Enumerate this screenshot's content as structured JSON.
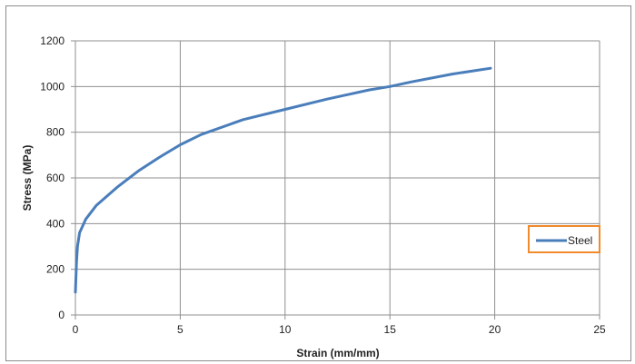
{
  "chart_data": {
    "type": "line",
    "xlabel": "Strain (mm/mm)",
    "ylabel": "Stress (MPa)",
    "xlim": [
      0,
      25
    ],
    "ylim": [
      0,
      1200
    ],
    "xticks": [
      "0",
      "5",
      "10",
      "15",
      "20",
      "25"
    ],
    "yticks": [
      "0",
      "200",
      "400",
      "600",
      "800",
      "1000",
      "1200"
    ],
    "grid": true,
    "legend_position": "right",
    "series": [
      {
        "name": "Steel",
        "color": "#4a7ebb",
        "x": [
          0,
          0.05,
          0.1,
          0.2,
          0.5,
          1,
          2,
          3,
          4,
          5,
          6,
          8,
          10,
          12,
          14,
          15,
          16,
          18,
          19.8
        ],
        "y": [
          100,
          230,
          300,
          360,
          420,
          480,
          560,
          630,
          690,
          745,
          790,
          855,
          900,
          945,
          985,
          1000,
          1020,
          1055,
          1080
        ]
      }
    ]
  }
}
